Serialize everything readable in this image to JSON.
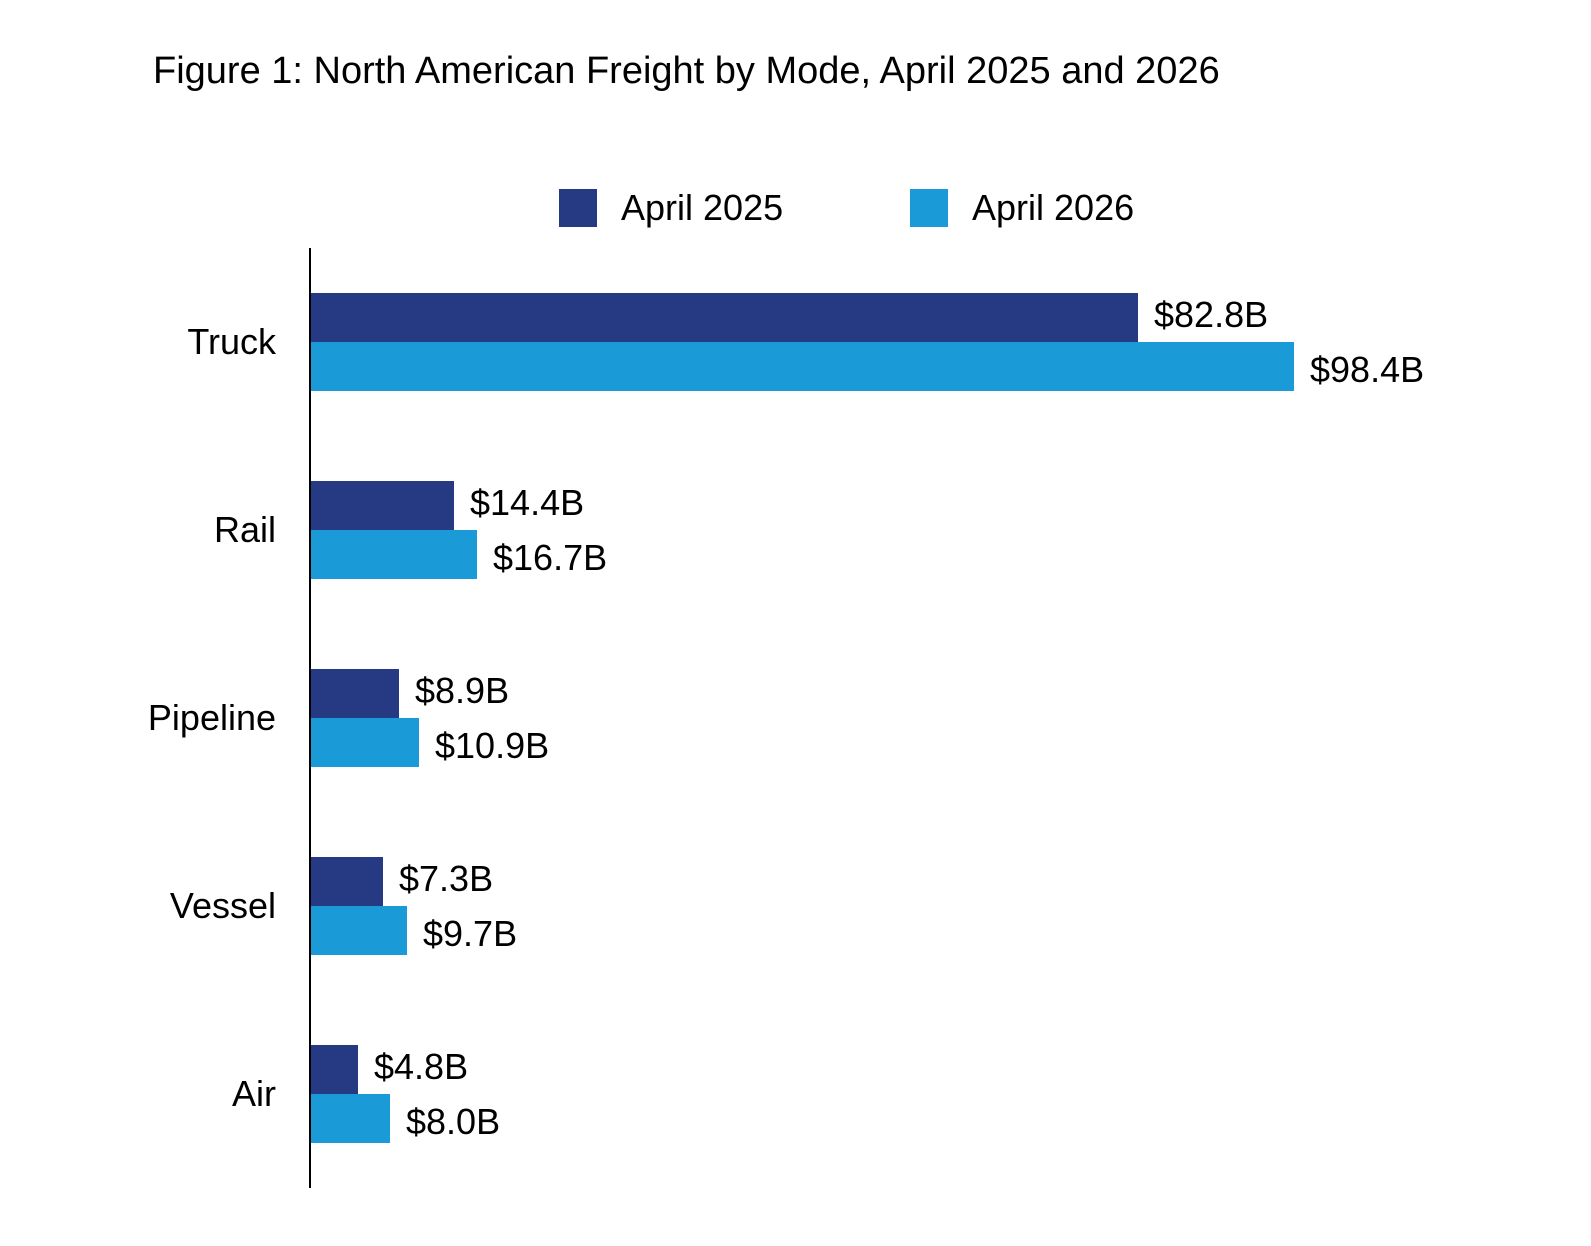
{
  "chart_data": {
    "type": "bar",
    "orientation": "horizontal",
    "title": "Figure 1: North American Freight by Mode, April 2025 and 2026",
    "categories": [
      "Truck",
      "Rail",
      "Pipeline",
      "Vessel",
      "Air"
    ],
    "series": [
      {
        "name": "April 2025",
        "color": "#253a82",
        "values": [
          82.8,
          14.4,
          8.9,
          7.3,
          4.8
        ],
        "labels": [
          "$82.8B",
          "$14.4B",
          "$8.9B",
          "$7.3B",
          "$4.8B"
        ]
      },
      {
        "name": "April 2026",
        "color": "#1a9bd7",
        "values": [
          98.4,
          16.7,
          10.9,
          9.7,
          8.0
        ],
        "labels": [
          "$98.4B",
          "$16.7B",
          "$10.9B",
          "$9.7B",
          "$8.0B"
        ]
      }
    ],
    "xlim": [
      0,
      98.4
    ],
    "legend": "top",
    "grid": false
  }
}
